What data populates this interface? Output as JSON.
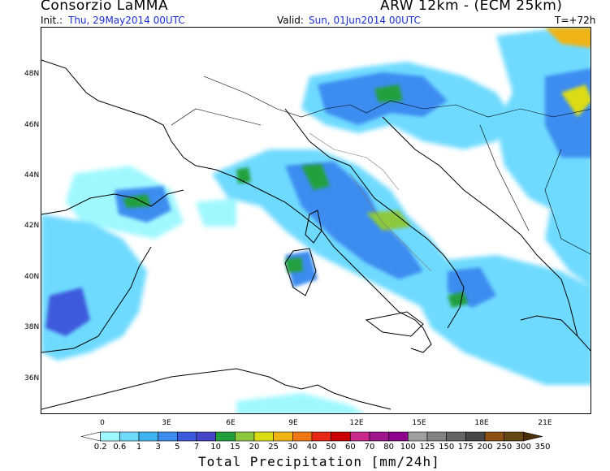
{
  "header": {
    "title_left": "Consorzio LaMMA",
    "title_right": "ARW 12km - (ECM 25km)",
    "init_label": "Init.:",
    "init_value": "Thu, 29May2014 00UTC",
    "valid_label": "Valid:",
    "valid_value": "Sun, 01Jun2014 00UTC",
    "timestep": "T=+72h"
  },
  "map": {
    "lat_labels": [
      "48N",
      "46N",
      "44N",
      "42N",
      "40N",
      "38N",
      "36N"
    ],
    "lon_labels": [
      "0",
      "3E",
      "6E",
      "9E",
      "12E",
      "15E",
      "18E",
      "21E"
    ]
  },
  "legend": {
    "title": "Total Precipitation [mm/24h]",
    "levels": [
      "0.2",
      "0.6",
      "1",
      "3",
      "5",
      "7",
      "10",
      "15",
      "20",
      "25",
      "30",
      "40",
      "50",
      "60",
      "70",
      "80",
      "100",
      "125",
      "150",
      "175",
      "200",
      "250",
      "300",
      "350"
    ],
    "colors": [
      "#ffffff",
      "#a0f8ff",
      "#6edaff",
      "#3cb4f0",
      "#3c8cf0",
      "#3c5adc",
      "#4646c8",
      "#22a03c",
      "#8cc83c",
      "#dcdc14",
      "#f0b414",
      "#f07814",
      "#e62814",
      "#c80000",
      "#c8288c",
      "#a0148c",
      "#8c008c",
      "#a0a0a0",
      "#828282",
      "#646464",
      "#464646",
      "#8c5014",
      "#644614",
      "#4b2d0a"
    ]
  }
}
